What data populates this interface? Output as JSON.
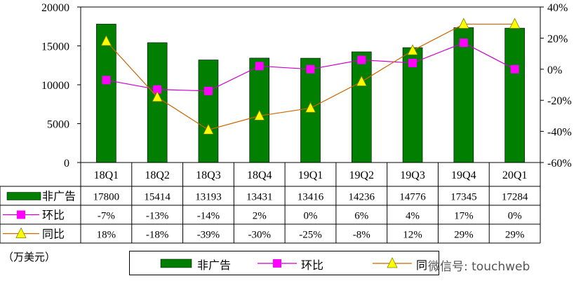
{
  "chart_data": {
    "type": "bar",
    "categories": [
      "18Q1",
      "18Q2",
      "18Q3",
      "18Q4",
      "19Q1",
      "19Q2",
      "19Q3",
      "19Q4",
      "20Q1"
    ],
    "series": [
      {
        "name": "非广告",
        "type": "bar",
        "axis": "left",
        "color": "#007F00",
        "values": [
          17800,
          15414,
          13193,
          13431,
          13416,
          14236,
          14776,
          17345,
          17284
        ]
      },
      {
        "name": "环比",
        "type": "line",
        "axis": "right",
        "color": "#CC00CC",
        "marker": "square-magenta",
        "values": [
          -7,
          -13,
          -14,
          2,
          0,
          6,
          4,
          17,
          0
        ],
        "labels": [
          "-7%",
          "-13%",
          "-14%",
          "2%",
          "0%",
          "6%",
          "4%",
          "17%",
          "0%"
        ]
      },
      {
        "name": "同比",
        "type": "line",
        "axis": "right",
        "color": "#CC6600",
        "marker": "triangle-yellow",
        "values": [
          18,
          -18,
          -39,
          -30,
          -25,
          -8,
          12,
          29,
          29
        ],
        "labels": [
          "18%",
          "-18%",
          "-39%",
          "-30%",
          "-25%",
          "-8%",
          "12%",
          "29%",
          "29%"
        ]
      }
    ],
    "ylim": [
      0,
      20000
    ],
    "y_ticks": [
      "0",
      "5000",
      "10000",
      "15000",
      "20000"
    ],
    "y2lim": [
      -60,
      40
    ],
    "y2_ticks": [
      "-60%",
      "-40%",
      "-20%",
      "0%",
      "20%",
      "40%"
    ],
    "table_row_labels": [
      "非广告",
      "环比",
      "同比"
    ],
    "table_cells": [
      [
        "17800",
        "15414",
        "13193",
        "13431",
        "13416",
        "14236",
        "14776",
        "17345",
        "17284"
      ],
      [
        "-7%",
        "-13%",
        "-14%",
        "2%",
        "0%",
        "6%",
        "4%",
        "17%",
        "0%"
      ],
      [
        "18%",
        "-18%",
        "-39%",
        "-30%",
        "-25%",
        "-8%",
        "12%",
        "29%",
        "29%"
      ]
    ],
    "legend": {
      "position": "bottom",
      "entries": [
        "非广告",
        "环比",
        "同"
      ]
    },
    "unit_note": "（万美元）",
    "grid": false
  },
  "watermark": "微信号: touchweb"
}
